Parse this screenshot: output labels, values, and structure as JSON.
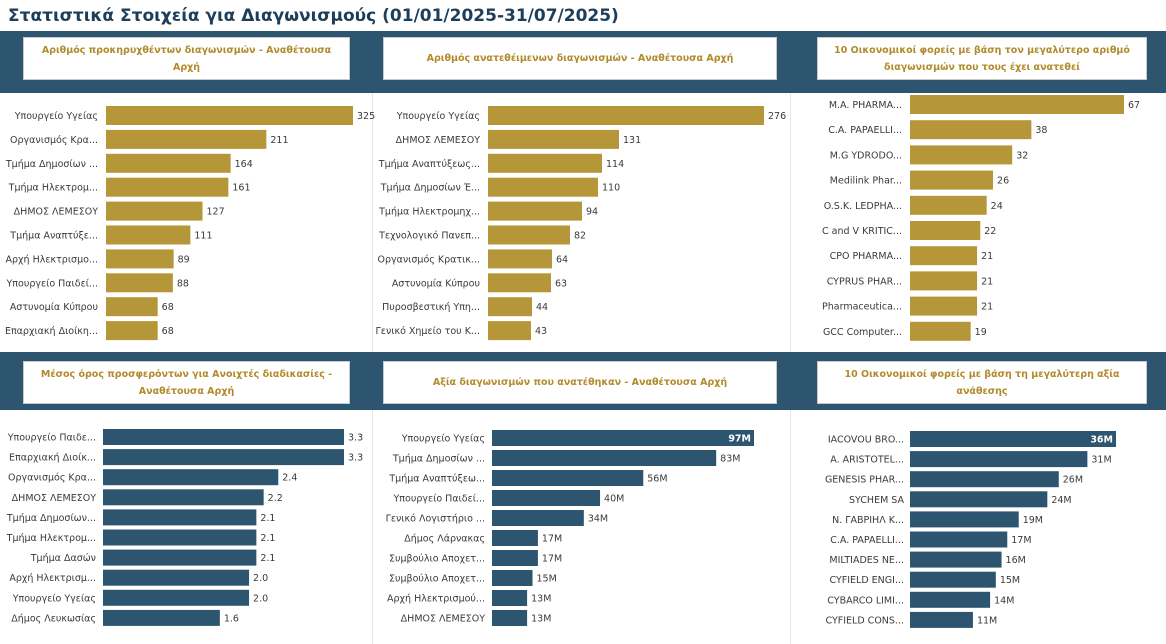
{
  "title": "Στατιστικά Στοιχεία για Διαγωνισμούς (01/01/2025-31/07/2025)",
  "colors": {
    "gold": "#b5973a",
    "navy": "#2e5570",
    "header_text": "#b28a2b",
    "band": "#2e5570"
  },
  "chart_data": [
    {
      "type": "bar",
      "orientation": "horizontal",
      "title": "Αριθμός προκηρυχθέντων διαγωνισμών - Αναθέτουσα Αρχή",
      "categories": [
        "Υπουργείο Υγείας",
        "Οργανισμός Κρα...",
        "Τμήμα Δημοσίων ...",
        "Τμήμα Ηλεκτρομ...",
        "ΔΗΜΟΣ ΛΕΜΕΣΟΥ",
        "Τμήμα Αναπτύξε...",
        "Αρχή Ηλεκτρισμο...",
        "Υπουργείο Παιδεί...",
        "Αστυνομία Κύπρου",
        "Επαρχιακή Διοίκη..."
      ],
      "values": [
        325,
        211,
        164,
        161,
        127,
        111,
        89,
        88,
        68,
        68
      ],
      "labels": [
        "325",
        "211",
        "164",
        "161",
        "127",
        "111",
        "89",
        "88",
        "68",
        "68"
      ],
      "max": 325,
      "color": "gold"
    },
    {
      "type": "bar",
      "orientation": "horizontal",
      "title": "Αριθμός ανατεθέιμενων διαγωνισμών - Αναθέτουσα Αρχή",
      "categories": [
        "Υπουργείο Υγείας",
        "ΔΗΜΟΣ ΛΕΜΕΣΟΥ",
        "Τμήμα Αναπτύξεως...",
        "Τμήμα Δημοσίων Έ...",
        "Τμήμα Ηλεκτρομηχ...",
        "Τεχνολογικό Πανεπ...",
        "Οργανισμός Κρατικ...",
        "Αστυνομία Κύπρου",
        "Πυροσβεστική Υπη...",
        "Γενικό Χημείο του Κ..."
      ],
      "values": [
        276,
        131,
        114,
        110,
        94,
        82,
        64,
        63,
        44,
        43
      ],
      "labels": [
        "276",
        "131",
        "114",
        "110",
        "94",
        "82",
        "64",
        "63",
        "44",
        "43"
      ],
      "max": 276,
      "color": "gold"
    },
    {
      "type": "bar",
      "orientation": "horizontal",
      "title": "10 Οικονομικοί φορείς με βάση τον μεγαλύτερο αριθμό διαγωνισμών που τους έχει ανατεθεί",
      "categories": [
        "M.A. PHARMA...",
        "C.A. PAPAELLI...",
        "M.G YDRODO...",
        "Medilink Phar...",
        "O.S.K. LEDPHA...",
        "C and V KRITIC...",
        "CPO PHARMA...",
        "CYPRUS PHAR...",
        "Pharmaceutica...",
        "GCC Computer..."
      ],
      "values": [
        67,
        38,
        32,
        26,
        24,
        22,
        21,
        21,
        21,
        19
      ],
      "labels": [
        "67",
        "38",
        "32",
        "26",
        "24",
        "22",
        "21",
        "21",
        "21",
        "19"
      ],
      "max": 67,
      "color": "gold"
    },
    {
      "type": "bar",
      "orientation": "horizontal",
      "title": "Μέσος όρος προσφερόντων για Ανοιχτές διαδικασίες - Αναθέτουσα Αρχή",
      "categories": [
        "Υπουργείο Παιδε...",
        "Επαρχιακή Διοίκ...",
        "Οργανισμός Κρα...",
        "ΔΗΜΟΣ ΛΕΜΕΣΟΥ",
        "Τμήμα Δημοσίων...",
        "Τμήμα Ηλεκτρομ...",
        "Τμήμα Δασών",
        "Αρχή Ηλεκτρισμ...",
        "Υπουργείο Υγείας",
        "Δήμος Λευκωσίας"
      ],
      "values": [
        3.3,
        3.3,
        2.4,
        2.2,
        2.1,
        2.1,
        2.1,
        2.0,
        2.0,
        1.6
      ],
      "labels": [
        "3.3",
        "3.3",
        "2.4",
        "2.2",
        "2.1",
        "2.1",
        "2.1",
        "2.0",
        "2.0",
        "1.6"
      ],
      "max": 3.3,
      "color": "navy"
    },
    {
      "type": "bar",
      "orientation": "horizontal",
      "title": "Αξία διαγωνισμών που ανατέθηκαν - Αναθέτουσα Αρχή",
      "categories": [
        "Υπουργείο Υγείας",
        "Τμήμα Δημοσίων ...",
        "Τμήμα Αναπτύξεω...",
        "Υπουργείο Παιδεί...",
        "Γενικό Λογιστήριο ...",
        "Δήμος Λάρνακας",
        "Συμβούλιο Αποχετ...",
        "Συμβούλιο Αποχετ...",
        "Αρχή Ηλεκτρισμού...",
        "ΔΗΜΟΣ ΛΕΜΕΣΟΥ"
      ],
      "values": [
        97,
        83,
        56,
        40,
        34,
        17,
        17,
        15,
        13,
        13
      ],
      "labels": [
        "97M",
        "83M",
        "56M",
        "40M",
        "34M",
        "17M",
        "17M",
        "15M",
        "13M",
        "13M"
      ],
      "inside_first": true,
      "max": 97,
      "color": "navy"
    },
    {
      "type": "bar",
      "orientation": "horizontal",
      "title": "10 Οικονομικοί φορείς με βάση τη μεγαλύτερη αξία ανάθεσης",
      "categories": [
        "IACOVOU BRO...",
        "A. ARISTOTEL...",
        "GENESIS PHAR...",
        "SYCHEM SA",
        "N. ΓΑΒΡΙΗΛ Κ...",
        "C.A. PAPAELLI...",
        "MILTIADES NE...",
        "CYFIELD ENGI...",
        "CYBARCO LIMI...",
        "CYFIELD CONS..."
      ],
      "values": [
        36,
        31,
        26,
        24,
        19,
        17,
        16,
        15,
        14,
        11
      ],
      "labels": [
        "36M",
        "31M",
        "26M",
        "24M",
        "19M",
        "17M",
        "16M",
        "15M",
        "14M",
        "11M"
      ],
      "inside_first": true,
      "max": 36,
      "color": "navy"
    }
  ]
}
